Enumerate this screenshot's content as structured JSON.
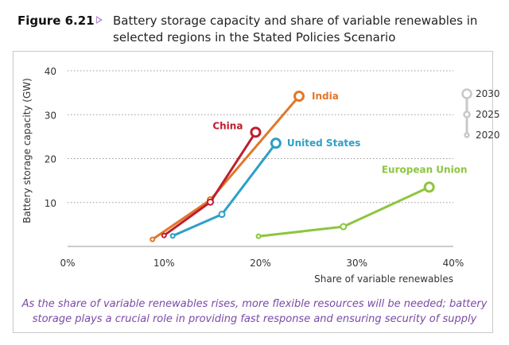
{
  "figure": {
    "label": "Figure 6.21",
    "title": "Battery storage capacity and share of variable renewables in selected regions in the Stated Policies Scenario"
  },
  "caption": "As the share of variable renewables rises, more flexible resources will be needed; battery storage plays a crucial role in providing fast response and ensuring security of supply",
  "chart_data": {
    "type": "line",
    "xlabel": "Share of variable renewables",
    "ylabel": "Battery storage capacity (GW)",
    "xlim": [
      0,
      40
    ],
    "ylim": [
      0,
      40
    ],
    "x_ticks": [
      "0%",
      "10%",
      "20%",
      "30%",
      "40%"
    ],
    "y_ticks": [
      "10",
      "20",
      "30",
      "40"
    ],
    "grid": "horizontal dotted",
    "legend": {
      "position": "right",
      "entries": [
        "2030",
        "2025",
        "2020"
      ],
      "color": "#c8c8c8"
    },
    "series": [
      {
        "name": "India",
        "color": "#e0772a",
        "points": [
          {
            "year": "2020",
            "x": 8.8,
            "y": 1.6
          },
          {
            "year": "2025",
            "x": 14.8,
            "y": 10.6
          },
          {
            "year": "2030",
            "x": 24.0,
            "y": 34.2
          }
        ]
      },
      {
        "name": "China",
        "color": "#bf1e2e",
        "points": [
          {
            "year": "2020",
            "x": 10.0,
            "y": 2.5
          },
          {
            "year": "2025",
            "x": 14.8,
            "y": 10.1
          },
          {
            "year": "2030",
            "x": 19.5,
            "y": 26.0
          }
        ]
      },
      {
        "name": "United States",
        "color": "#2e9fc7",
        "points": [
          {
            "year": "2020",
            "x": 10.9,
            "y": 2.4
          },
          {
            "year": "2025",
            "x": 16.0,
            "y": 7.3
          },
          {
            "year": "2030",
            "x": 21.6,
            "y": 23.5
          }
        ]
      },
      {
        "name": "European Union",
        "color": "#8cc63f",
        "points": [
          {
            "year": "2020",
            "x": 19.8,
            "y": 2.3
          },
          {
            "year": "2025",
            "x": 28.6,
            "y": 4.5
          },
          {
            "year": "2030",
            "x": 37.5,
            "y": 13.5
          }
        ]
      }
    ]
  }
}
